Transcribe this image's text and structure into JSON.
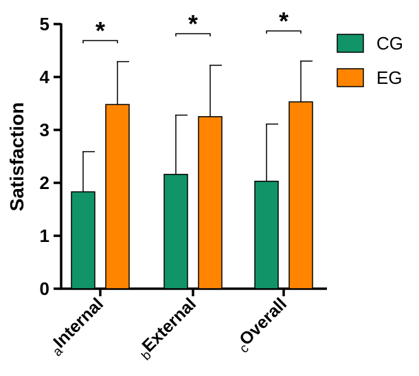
{
  "chart_data": {
    "type": "bar",
    "title": "",
    "xlabel": "",
    "ylabel": "Satisfaction",
    "ylim": [
      0,
      5
    ],
    "yticks": [
      0,
      1,
      2,
      3,
      4,
      5
    ],
    "categories": [
      {
        "prefix": "a",
        "label": "Internal"
      },
      {
        "prefix": "b",
        "label": "External"
      },
      {
        "prefix": "c",
        "label": "Overall"
      }
    ],
    "series": [
      {
        "name": "CG",
        "color": "#119467",
        "values": [
          1.83,
          2.16,
          2.03
        ],
        "errors": [
          0.76,
          1.12,
          1.08
        ]
      },
      {
        "name": "EG",
        "color": "#FF8500",
        "values": [
          3.48,
          3.25,
          3.53
        ],
        "errors": [
          0.81,
          0.97,
          0.77
        ]
      }
    ],
    "significance": [
      "*",
      "*",
      "*"
    ],
    "legend": "top-right"
  }
}
